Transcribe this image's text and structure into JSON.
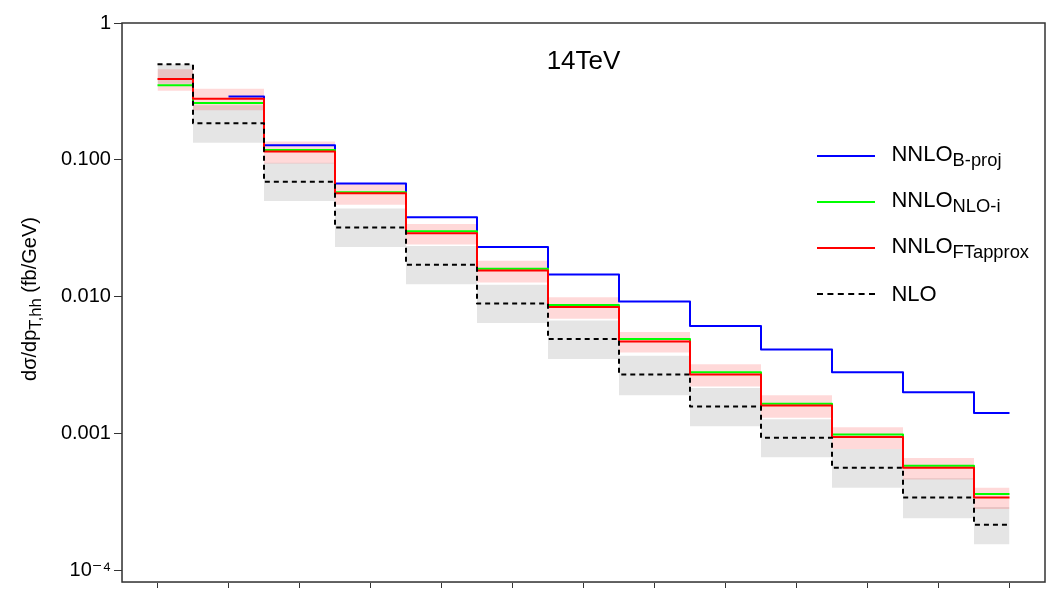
{
  "chart_data": {
    "type": "step",
    "title": "14TeV",
    "ylabel": "dσ/dp$_{T,hh}$ (fb/GeV)",
    "categories": [
      null,
      null,
      null,
      null,
      null,
      null,
      null,
      null,
      null,
      null,
      null,
      null,
      null
    ],
    "log": "y",
    "ylim": [
      8.2e-05,
      1
    ],
    "yticks": [
      {
        "value": 1,
        "label": "1"
      },
      {
        "value": 0.1,
        "label": "0.100"
      },
      {
        "value": 0.01,
        "label": "0.010"
      },
      {
        "value": 0.001,
        "label": "0.001"
      },
      {
        "value": 0.0001,
        "label": "10⁻⁴"
      }
    ],
    "grid": false,
    "legend": "right",
    "marker": "none",
    "series": [
      {
        "name": "NNLO$_{B-proj}$",
        "color": "#0000ff",
        "values": [
          null,
          0.29,
          0.128,
          0.067,
          0.038,
          0.023,
          0.0145,
          0.0092,
          0.0061,
          0.0041,
          0.0028,
          0.002,
          0.00141
        ]
      },
      {
        "name": "NNLO$_{NLO-i}$",
        "color": "#00ff00",
        "values": [
          0.35,
          0.26,
          0.118,
          0.058,
          0.03,
          0.016,
          0.0087,
          0.0049,
          0.0028,
          0.00165,
          0.00098,
          0.00058,
          0.00036
        ]
      },
      {
        "name": "NNLO$_{FTapprox}$",
        "color": "#ff0000",
        "values": [
          0.39,
          0.28,
          0.115,
          0.057,
          0.029,
          0.0155,
          0.0084,
          0.0047,
          0.0027,
          0.0016,
          0.00094,
          0.00056,
          0.00034
        ],
        "lower": [
          0.32,
          0.23,
          0.094,
          0.047,
          0.024,
          0.0127,
          0.0069,
          0.0039,
          0.0022,
          0.0013,
          0.00077,
          0.00046,
          0.00028
        ],
        "upper": [
          0.46,
          0.33,
          0.136,
          0.067,
          0.034,
          0.0183,
          0.0099,
          0.0055,
          0.0032,
          0.0019,
          0.00111,
          0.00066,
          0.0004
        ]
      },
      {
        "name": "NLO",
        "color": "#000000",
        "line_style": "dashed",
        "values": [
          0.5,
          0.185,
          0.069,
          0.032,
          0.0171,
          0.0089,
          0.0049,
          0.0027,
          0.00157,
          0.00093,
          0.00056,
          0.00034,
          0.000215
        ],
        "lower": [
          0.36,
          0.133,
          0.05,
          0.023,
          0.0123,
          0.0064,
          0.0035,
          0.0019,
          0.00113,
          0.00067,
          0.0004,
          0.00024,
          0.000155
        ],
        "upper": [
          0.5,
          0.25,
          0.095,
          0.044,
          0.0234,
          0.0122,
          0.0067,
          0.0037,
          0.00215,
          0.00127,
          0.00077,
          0.00047,
          0.00029
        ]
      }
    ]
  }
}
